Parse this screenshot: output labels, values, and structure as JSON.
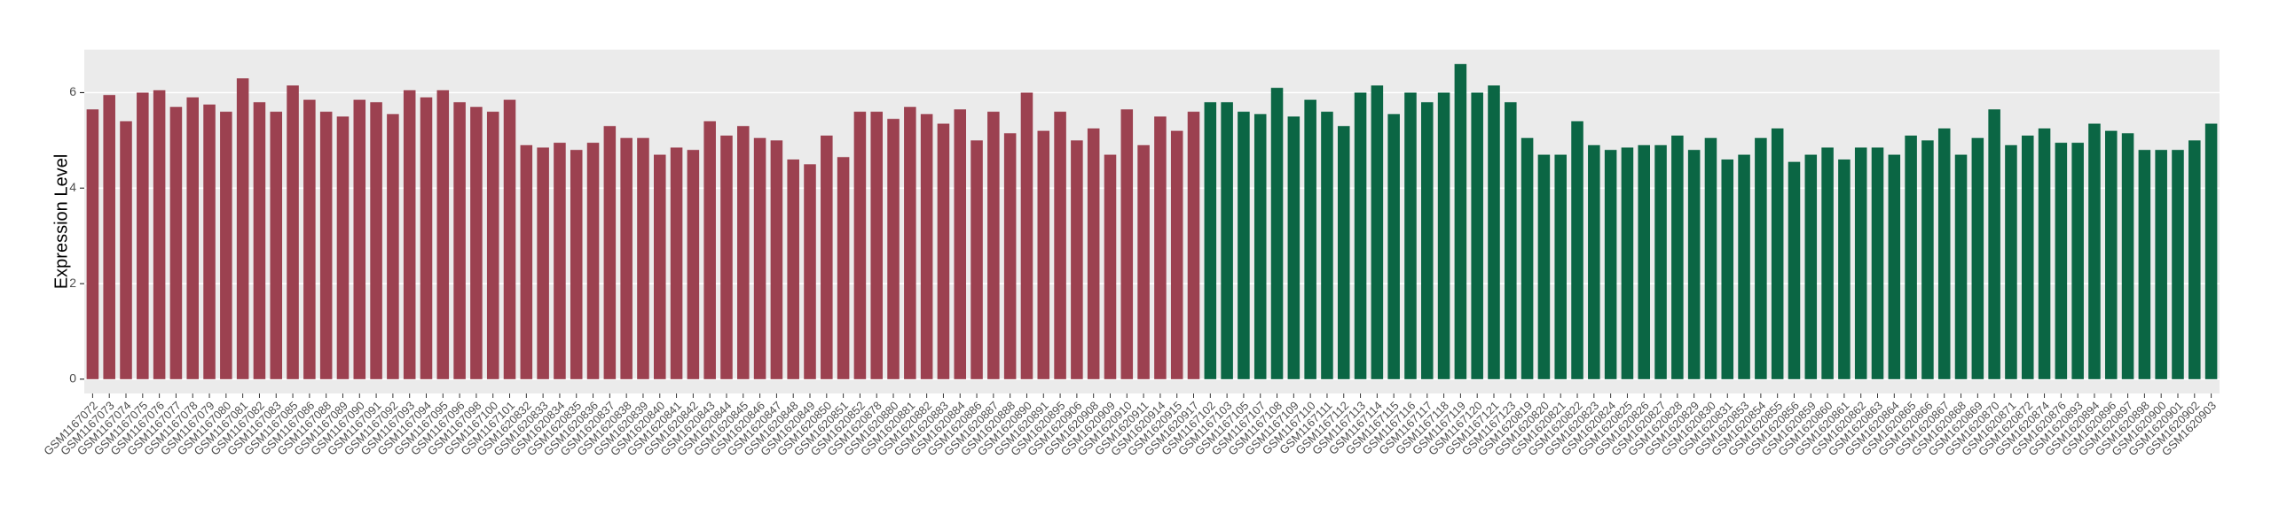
{
  "chart_data": {
    "type": "bar",
    "y_label": "Expression Level",
    "categories": [
      "GSM1167072",
      "GSM1167073",
      "GSM1167074",
      "GSM1167075",
      "GSM1167076",
      "GSM1167077",
      "GSM1167078",
      "GSM1167079",
      "GSM1167080",
      "GSM1167081",
      "GSM1167082",
      "GSM1167083",
      "GSM1167085",
      "GSM1167086",
      "GSM1167088",
      "GSM1167089",
      "GSM1167090",
      "GSM1167091",
      "GSM1167092",
      "GSM1167093",
      "GSM1167094",
      "GSM1167095",
      "GSM1167096",
      "GSM1167098",
      "GSM1167100",
      "GSM1167101",
      "GSM1620832",
      "GSM1620833",
      "GSM1620834",
      "GSM1620835",
      "GSM1620836",
      "GSM1620837",
      "GSM1620838",
      "GSM1620839",
      "GSM1620840",
      "GSM1620841",
      "GSM1620842",
      "GSM1620843",
      "GSM1620844",
      "GSM1620845",
      "GSM1620846",
      "GSM1620847",
      "GSM1620848",
      "GSM1620849",
      "GSM1620850",
      "GSM1620851",
      "GSM1620852",
      "GSM1620878",
      "GSM1620880",
      "GSM1620881",
      "GSM1620882",
      "GSM1620883",
      "GSM1620884",
      "GSM1620886",
      "GSM1620887",
      "GSM1620888",
      "GSM1620890",
      "GSM1620891",
      "GSM1620895",
      "GSM1620906",
      "GSM1620908",
      "GSM1620909",
      "GSM1620910",
      "GSM1620911",
      "GSM1620914",
      "GSM1620915",
      "GSM1620917",
      "GSM1167102",
      "GSM1167103",
      "GSM1167105",
      "GSM1167107",
      "GSM1167108",
      "GSM1167109",
      "GSM1167110",
      "GSM1167111",
      "GSM1167112",
      "GSM1167113",
      "GSM1167114",
      "GSM1167115",
      "GSM1167116",
      "GSM1167117",
      "GSM1167118",
      "GSM1167119",
      "GSM1167120",
      "GSM1167121",
      "GSM1167123",
      "GSM1620819",
      "GSM1620820",
      "GSM1620821",
      "GSM1620822",
      "GSM1620823",
      "GSM1620824",
      "GSM1620825",
      "GSM1620826",
      "GSM1620827",
      "GSM1620828",
      "GSM1620829",
      "GSM1620830",
      "GSM1620831",
      "GSM1620853",
      "GSM1620854",
      "GSM1620855",
      "GSM1620856",
      "GSM1620859",
      "GSM1620860",
      "GSM1620861",
      "GSM1620862",
      "GSM1620863",
      "GSM1620864",
      "GSM1620865",
      "GSM1620866",
      "GSM1620867",
      "GSM1620868",
      "GSM1620869",
      "GSM1620870",
      "GSM1620871",
      "GSM1620872",
      "GSM1620874",
      "GSM1620876",
      "GSM1620893",
      "GSM1620894",
      "GSM1620896",
      "GSM1620897",
      "GSM1620898",
      "GSM1620900",
      "GSM1620901",
      "GSM1620902",
      "GSM1620903"
    ],
    "values": [
      5.65,
      5.95,
      5.4,
      6.0,
      6.05,
      5.7,
      5.9,
      5.75,
      5.6,
      6.3,
      5.8,
      5.6,
      6.15,
      5.85,
      5.6,
      5.5,
      5.85,
      5.8,
      5.55,
      6.05,
      5.9,
      6.05,
      5.8,
      5.7,
      5.6,
      5.85,
      4.9,
      4.85,
      4.95,
      4.8,
      4.95,
      5.3,
      5.05,
      5.05,
      4.7,
      4.85,
      4.8,
      5.4,
      5.1,
      5.3,
      5.05,
      5.0,
      4.6,
      4.5,
      5.1,
      4.65,
      5.6,
      5.6,
      5.45,
      5.7,
      5.55,
      5.35,
      5.65,
      5.0,
      5.6,
      5.15,
      6.0,
      5.2,
      5.6,
      5.0,
      5.25,
      4.7,
      5.65,
      4.9,
      5.5,
      5.2,
      5.6,
      5.8,
      5.8,
      5.6,
      5.55,
      6.1,
      5.5,
      5.85,
      5.6,
      5.3,
      6.0,
      6.15,
      5.55,
      6.0,
      5.8,
      6.0,
      6.6,
      6.0,
      6.15,
      5.8,
      5.05,
      4.7,
      4.7,
      5.4,
      4.9,
      4.8,
      4.85,
      4.9,
      4.9,
      5.1,
      4.8,
      5.05,
      4.6,
      4.7,
      5.05,
      5.25,
      4.55,
      4.7,
      4.85,
      4.6,
      4.85,
      4.85,
      4.7,
      5.1,
      5.0,
      5.25,
      4.7,
      5.05,
      5.65,
      4.9,
      5.1,
      5.25,
      4.95,
      4.95,
      5.35,
      5.2,
      5.15,
      4.8,
      4.8,
      4.8,
      5.0,
      5.35
    ],
    "colors": [
      "#9c4150",
      "#9c4150",
      "#9c4150",
      "#9c4150",
      "#9c4150",
      "#9c4150",
      "#9c4150",
      "#9c4150",
      "#9c4150",
      "#9c4150",
      "#9c4150",
      "#9c4150",
      "#9c4150",
      "#9c4150",
      "#9c4150",
      "#9c4150",
      "#9c4150",
      "#9c4150",
      "#9c4150",
      "#9c4150",
      "#9c4150",
      "#9c4150",
      "#9c4150",
      "#9c4150",
      "#9c4150",
      "#9c4150",
      "#9c4150",
      "#9c4150",
      "#9c4150",
      "#9c4150",
      "#9c4150",
      "#9c4150",
      "#9c4150",
      "#9c4150",
      "#9c4150",
      "#9c4150",
      "#9c4150",
      "#9c4150",
      "#9c4150",
      "#9c4150",
      "#9c4150",
      "#9c4150",
      "#9c4150",
      "#9c4150",
      "#9c4150",
      "#9c4150",
      "#9c4150",
      "#9c4150",
      "#9c4150",
      "#9c4150",
      "#9c4150",
      "#9c4150",
      "#9c4150",
      "#9c4150",
      "#9c4150",
      "#9c4150",
      "#9c4150",
      "#9c4150",
      "#9c4150",
      "#9c4150",
      "#9c4150",
      "#9c4150",
      "#9c4150",
      "#9c4150",
      "#9c4150",
      "#9c4150",
      "#9c4150",
      "#0b6644",
      "#0b6644",
      "#0b6644",
      "#0b6644",
      "#0b6644",
      "#0b6644",
      "#0b6644",
      "#0b6644",
      "#0b6644",
      "#0b6644",
      "#0b6644",
      "#0b6644",
      "#0b6644",
      "#0b6644",
      "#0b6644",
      "#0b6644",
      "#0b6644",
      "#0b6644",
      "#0b6644",
      "#0b6644",
      "#0b6644",
      "#0b6644",
      "#0b6644",
      "#0b6644",
      "#0b6644",
      "#0b6644",
      "#0b6644",
      "#0b6644",
      "#0b6644",
      "#0b6644",
      "#0b6644",
      "#0b6644",
      "#0b6644",
      "#0b6644",
      "#0b6644",
      "#0b6644",
      "#0b6644",
      "#0b6644",
      "#0b6644",
      "#0b6644",
      "#0b6644",
      "#0b6644",
      "#0b6644",
      "#0b6644",
      "#0b6644",
      "#0b6644",
      "#0b6644",
      "#0b6644",
      "#0b6644",
      "#0b6644",
      "#0b6644",
      "#0b6644",
      "#0b6644",
      "#0b6644",
      "#0b6644",
      "#0b6644",
      "#0b6644",
      "#0b6644",
      "#0b6644",
      "#0b6644",
      "#0b6644"
    ],
    "ylim": [
      -0.3,
      6.9
    ],
    "yticks": [
      0,
      2,
      4,
      6
    ],
    "grid": true
  }
}
